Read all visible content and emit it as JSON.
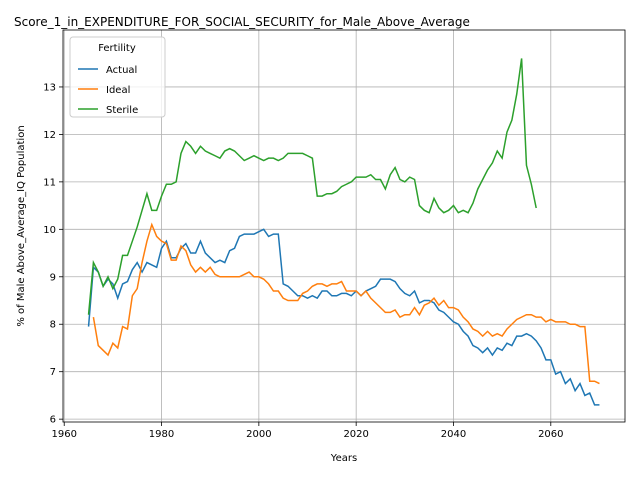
{
  "chart_data": {
    "type": "line",
    "title": "Score_1_in_EXPENDITURE_FOR_SOCIAL_SECURITY_for_Male_Above_Average",
    "xlabel": "Years",
    "ylabel": "% of Male Above_Average_IQ Population",
    "legend_title": "Fertility",
    "legend": "upper left",
    "grid": true,
    "x": [
      1965,
      1966,
      1967,
      1968,
      1969,
      1970,
      1971,
      1972,
      1973,
      1974,
      1975,
      1976,
      1977,
      1978,
      1979,
      1980,
      1981,
      1982,
      1983,
      1984,
      1985,
      1986,
      1987,
      1988,
      1989,
      1990,
      1991,
      1992,
      1993,
      1994,
      1995,
      1996,
      1997,
      1998,
      1999,
      2000,
      2001,
      2002,
      2003,
      2004,
      2005,
      2006,
      2007,
      2008,
      2009,
      2010,
      2011,
      2012,
      2013,
      2014,
      2015,
      2016,
      2017,
      2018,
      2019,
      2020,
      2021,
      2022,
      2023,
      2024,
      2025,
      2026,
      2027,
      2028,
      2029,
      2030,
      2031,
      2032,
      2033,
      2034,
      2035,
      2036,
      2037,
      2038,
      2039,
      2040,
      2041,
      2042,
      2043,
      2044,
      2045,
      2046,
      2047,
      2048,
      2049,
      2050,
      2051,
      2052,
      2053,
      2054,
      2055,
      2056,
      2057,
      2058,
      2059,
      2060,
      2061,
      2062,
      2063,
      2064,
      2065,
      2066,
      2067,
      2068,
      2069,
      2070
    ],
    "series": [
      {
        "name": "Actual",
        "color": "#1f77b4",
        "values": [
          7.95,
          9.2,
          9.1,
          8.8,
          8.95,
          8.85,
          8.55,
          8.85,
          8.9,
          9.15,
          9.3,
          9.1,
          9.3,
          9.25,
          9.2,
          9.6,
          9.75,
          9.4,
          9.4,
          9.6,
          9.7,
          9.5,
          9.5,
          9.75,
          9.5,
          9.4,
          9.3,
          9.35,
          9.3,
          9.55,
          9.6,
          9.85,
          9.9,
          9.9,
          9.9,
          9.95,
          10.0,
          9.85,
          9.9,
          9.9,
          8.85,
          8.8,
          8.7,
          8.6,
          8.6,
          8.55,
          8.6,
          8.55,
          8.7,
          8.7,
          8.6,
          8.6,
          8.65,
          8.65,
          8.6,
          8.7,
          8.6,
          8.7,
          8.75,
          8.8,
          8.95,
          8.95,
          8.95,
          8.9,
          8.75,
          8.65,
          8.6,
          8.7,
          8.45,
          8.5,
          8.5,
          8.45,
          8.3,
          8.25,
          8.15,
          8.05,
          8.0,
          7.85,
          7.75,
          7.55,
          7.5,
          7.4,
          7.5,
          7.35,
          7.5,
          7.45,
          7.6,
          7.55,
          7.75,
          7.75,
          7.8,
          7.75,
          7.65,
          7.5,
          7.25,
          7.25,
          6.95,
          7.0,
          6.75,
          6.85,
          6.6,
          6.75,
          6.5,
          6.55,
          6.3,
          6.3
        ]
      },
      {
        "name": "Ideal",
        "color": "#ff7f0e",
        "values": [
          null,
          8.15,
          7.55,
          7.45,
          7.35,
          7.6,
          7.5,
          7.95,
          7.9,
          8.6,
          8.75,
          9.3,
          9.75,
          10.1,
          9.85,
          9.75,
          9.7,
          9.35,
          9.35,
          9.65,
          9.55,
          9.25,
          9.1,
          9.2,
          9.1,
          9.2,
          9.05,
          9.0,
          9.0,
          9.0,
          9.0,
          9.0,
          9.05,
          9.1,
          9.0,
          9.0,
          8.95,
          8.85,
          8.7,
          8.7,
          8.55,
          8.5,
          8.5,
          8.5,
          8.65,
          8.7,
          8.8,
          8.85,
          8.85,
          8.8,
          8.85,
          8.85,
          8.9,
          8.7,
          8.7,
          8.7,
          8.6,
          8.7,
          8.55,
          8.45,
          8.35,
          8.25,
          8.25,
          8.3,
          8.15,
          8.2,
          8.2,
          8.35,
          8.2,
          8.4,
          8.45,
          8.55,
          8.4,
          8.5,
          8.35,
          8.35,
          8.3,
          8.15,
          8.05,
          7.9,
          7.85,
          7.75,
          7.85,
          7.75,
          7.8,
          7.75,
          7.9,
          8.0,
          8.1,
          8.15,
          8.2,
          8.2,
          8.15,
          8.15,
          8.05,
          8.1,
          8.05,
          8.05,
          8.05,
          8.0,
          8.0,
          7.95,
          7.95,
          6.8,
          6.8,
          6.75
        ]
      },
      {
        "name": "Sterile",
        "color": "#2ca02c",
        "values": [
          8.2,
          9.3,
          9.1,
          8.8,
          9.0,
          8.75,
          8.95,
          9.45,
          9.45,
          9.75,
          10.05,
          10.4,
          10.75,
          10.4,
          10.4,
          10.7,
          10.95,
          10.95,
          11.0,
          11.6,
          11.85,
          11.75,
          11.6,
          11.75,
          11.65,
          11.6,
          11.55,
          11.5,
          11.65,
          11.7,
          11.65,
          11.55,
          11.45,
          11.5,
          11.55,
          11.5,
          11.45,
          11.5,
          11.5,
          11.45,
          11.5,
          11.6,
          11.6,
          11.6,
          11.6,
          11.55,
          11.5,
          10.7,
          10.7,
          10.75,
          10.75,
          10.8,
          10.9,
          10.95,
          11.0,
          11.1,
          11.1,
          11.1,
          11.15,
          11.05,
          11.05,
          10.85,
          11.15,
          11.3,
          11.05,
          11.0,
          11.1,
          11.05,
          10.5,
          10.4,
          10.35,
          10.65,
          10.45,
          10.35,
          10.4,
          10.5,
          10.35,
          10.4,
          10.35,
          10.55,
          10.85,
          11.05,
          11.25,
          11.4,
          11.65,
          11.5,
          12.05,
          12.3,
          12.85,
          13.6,
          11.35,
          10.95,
          10.45,
          null,
          null,
          null,
          null,
          null,
          null,
          null,
          null,
          null,
          null,
          null,
          null,
          null
        ]
      }
    ],
    "xlim": [
      1959.75,
      2075.25
    ],
    "xticks": [
      1960,
      1980,
      2000,
      2020,
      2040,
      2060
    ],
    "ylim": [
      5.94,
      14.2
    ],
    "yticks": [
      6,
      7,
      8,
      9,
      10,
      11,
      12,
      13
    ]
  }
}
